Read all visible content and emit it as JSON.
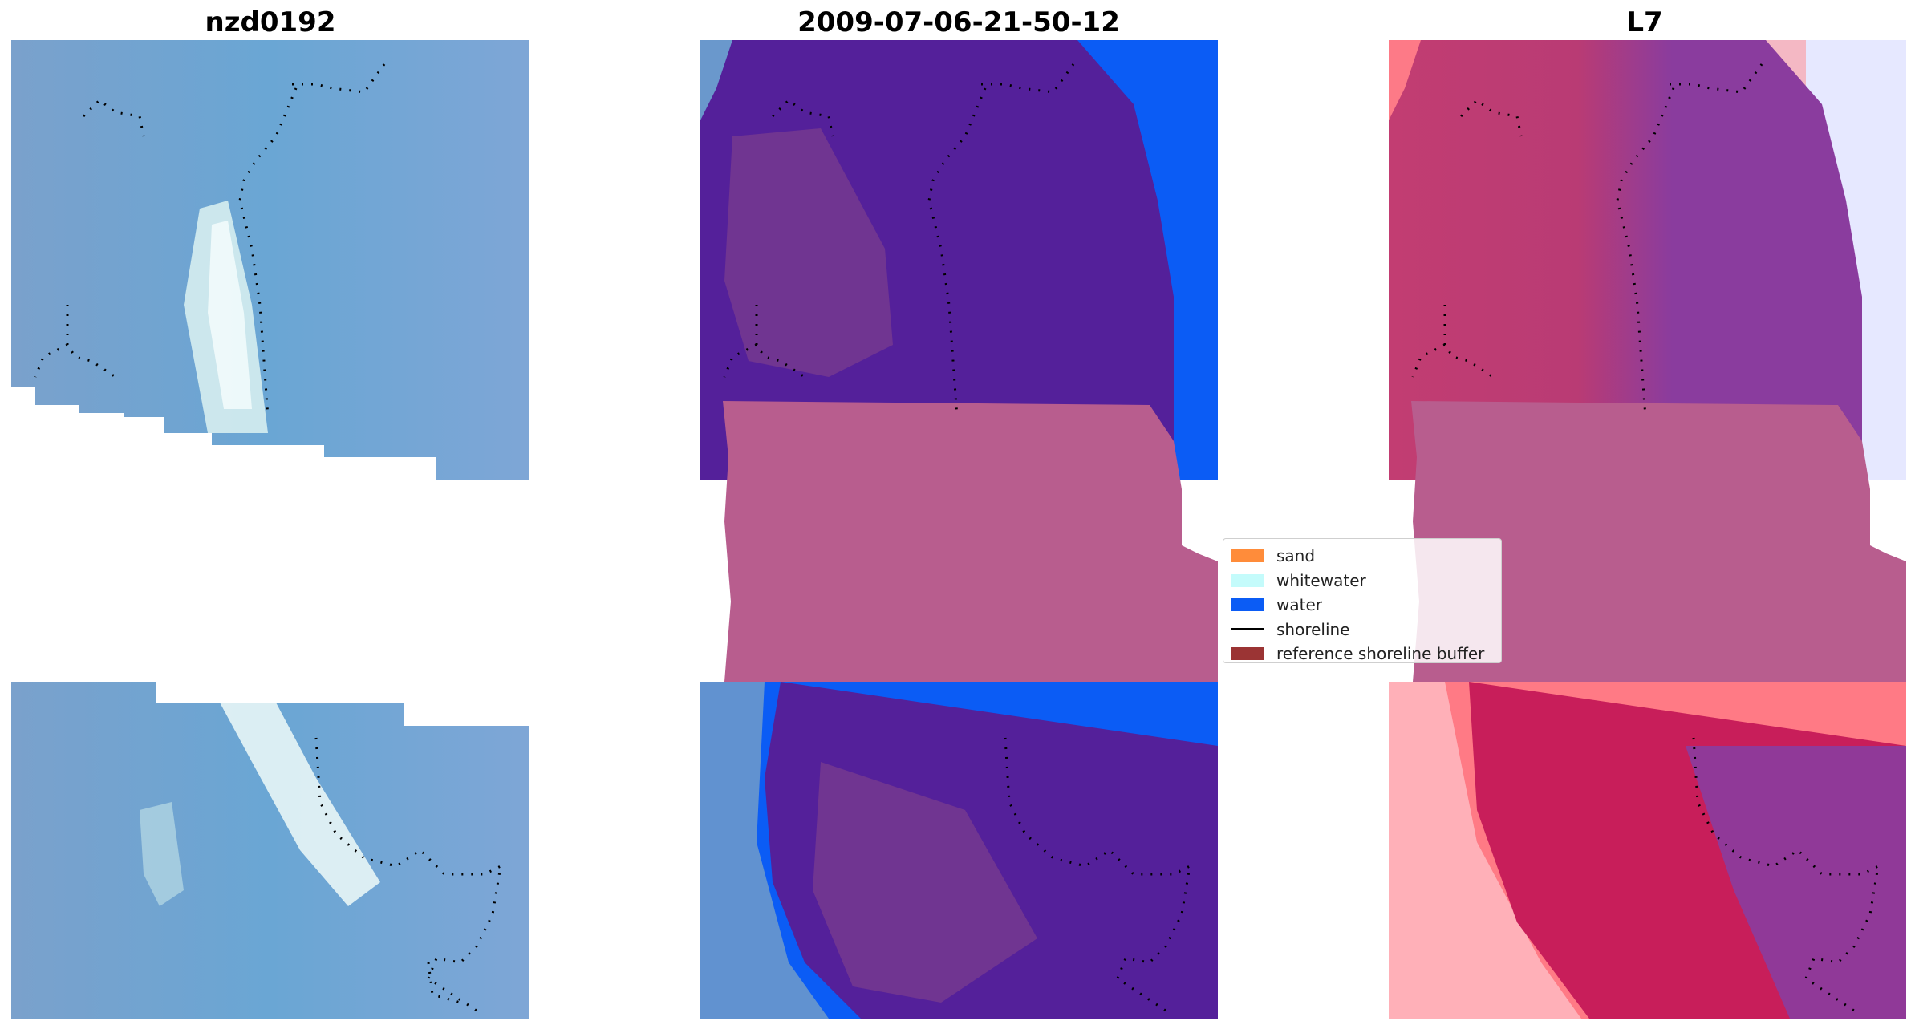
{
  "panels": [
    {
      "title": "nzd0192"
    },
    {
      "title": "2009-07-06-21-50-12"
    },
    {
      "title": "L7"
    }
  ],
  "legend": {
    "items": [
      {
        "label": "sand",
        "kind": "patch",
        "color": "#ff8c3a"
      },
      {
        "label": "whitewater",
        "kind": "patch",
        "color": "#c4fbfb"
      },
      {
        "label": "water",
        "kind": "patch",
        "color": "#0b5cf5"
      },
      {
        "label": "shoreline",
        "kind": "line",
        "color": "#000000"
      },
      {
        "label": "reference shoreline buffer",
        "kind": "patch",
        "color": "#9b3434"
      }
    ]
  },
  "colors": {
    "rgb_water": "#6e9fd0",
    "classified_land": "#54209a",
    "classified_water": "#0b5cf5",
    "buffer_band": "#b85d8e",
    "index_land": "#c23d72",
    "index_purple": "#8a3c9e",
    "index_red": "#ff4a55"
  }
}
